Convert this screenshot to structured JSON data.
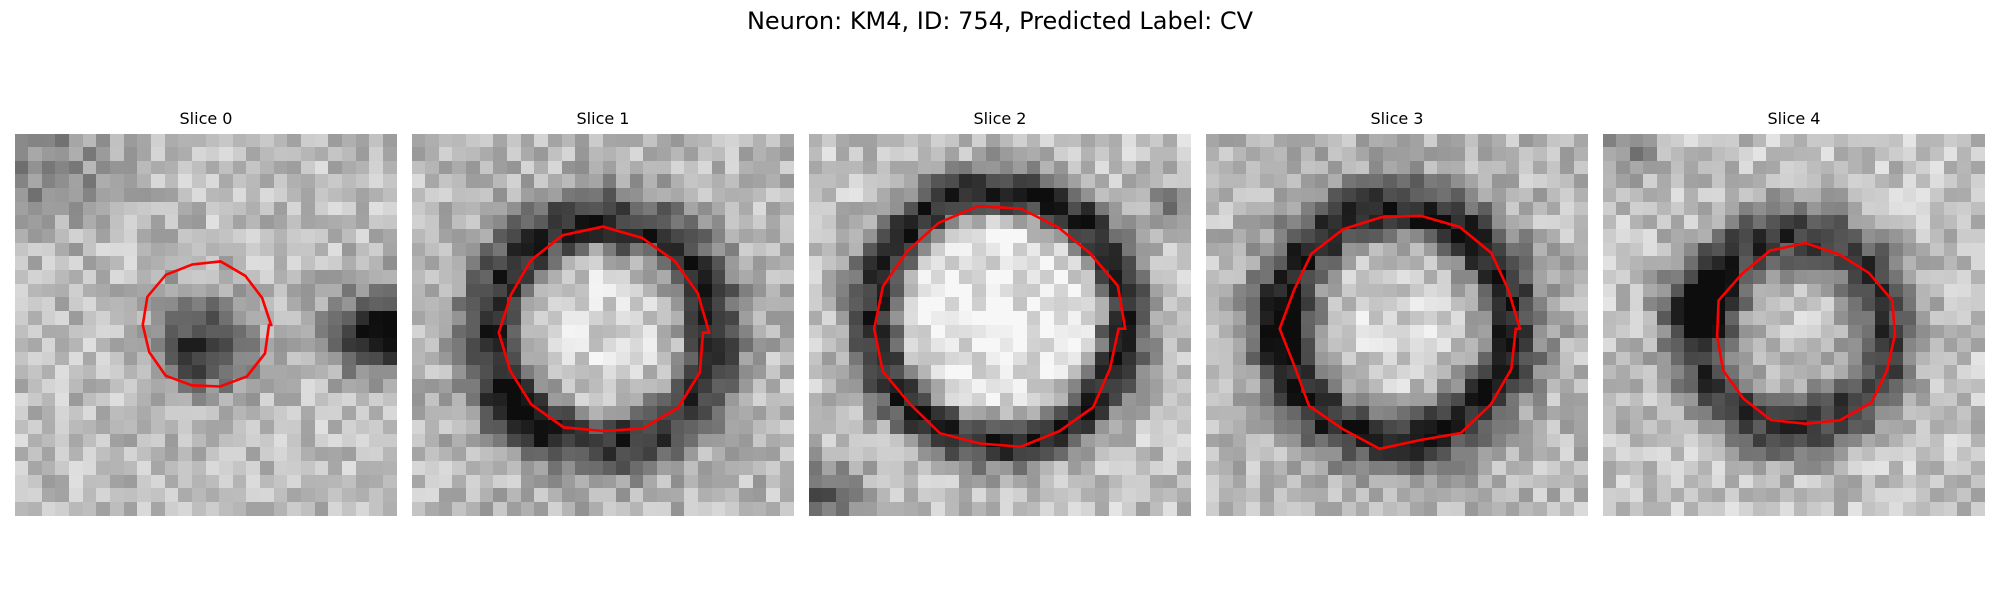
{
  "figure": {
    "title": "Neuron: KM4, ID: 754, Predicted Label: CV"
  },
  "panels": [
    {
      "title": "Slice 0"
    },
    {
      "title": "Slice 1"
    },
    {
      "title": "Slice 2"
    },
    {
      "title": "Slice 3"
    },
    {
      "title": "Slice 4"
    }
  ],
  "style": {
    "contour_color": "#ff0000",
    "colormap": "gray"
  }
}
